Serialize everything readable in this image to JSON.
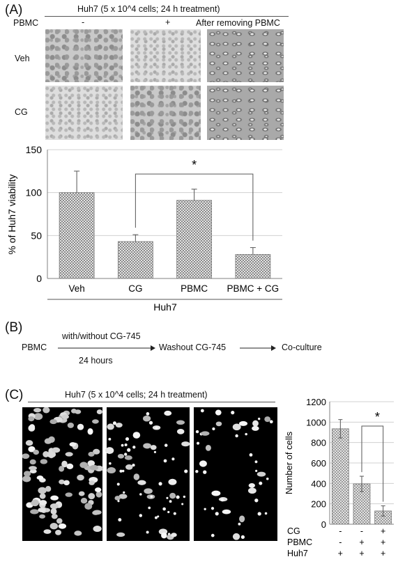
{
  "panels": {
    "a": "(A)",
    "b": "(B)",
    "c": "(C)"
  },
  "panel_a": {
    "header": "Huh7 (5 x 10^4 cells; 24 h treatment)",
    "pbmc_label": "PBMC",
    "pbmc_minus": "-",
    "pbmc_plus": "+",
    "after_label": "After removing PBMC",
    "row_veh": "Veh",
    "row_cg": "CG"
  },
  "panel_b": {
    "pbmc": "PBMC",
    "with_without": "with/without CG-745",
    "hours": "24 hours",
    "washout": "Washout CG-745",
    "coculture": "Co-culture"
  },
  "panel_c": {
    "header": "Huh7 (5 x 10^4 cells; 24 h treatment)",
    "row_labels": [
      "CG",
      "PBMC",
      "Huh7"
    ],
    "row_signs": [
      [
        "-",
        "-",
        "+"
      ],
      [
        "-",
        "+",
        "+"
      ],
      [
        "+",
        "+",
        "+"
      ]
    ]
  },
  "chart_data": [
    {
      "type": "bar",
      "categories": [
        "Veh",
        "CG",
        "PBMC",
        "PBMC + CG"
      ],
      "values": [
        100,
        43,
        91,
        28
      ],
      "errors": [
        25,
        8,
        13,
        8
      ],
      "ylabel": "% of Huh7 viability",
      "xlabel": "Huh7",
      "ylim": [
        0,
        150
      ],
      "yticks": [
        "0",
        "50",
        "100",
        "150"
      ],
      "grid": true,
      "significance": {
        "from": "CG",
        "to": "PBMC + CG",
        "label": "*"
      }
    },
    {
      "type": "bar",
      "categories": [
        "Huh7",
        "PBMC + Huh7",
        "CG + PBMC + Huh7"
      ],
      "values": [
        935,
        395,
        130
      ],
      "errors": [
        90,
        75,
        50
      ],
      "ylabel": "Number of cells",
      "ylim": [
        0,
        1200
      ],
      "yticks": [
        "0",
        "200",
        "400",
        "600",
        "800",
        "1000",
        "1200"
      ],
      "grid": true,
      "significance": {
        "from": "PBMC + Huh7",
        "to": "CG + PBMC + Huh7",
        "label": "*"
      }
    }
  ],
  "colors": {
    "bar_fill": "#d9d9d9",
    "bar_pattern": "#8a8a8a",
    "grid": "#d0d0d0",
    "axis": "#808080"
  }
}
